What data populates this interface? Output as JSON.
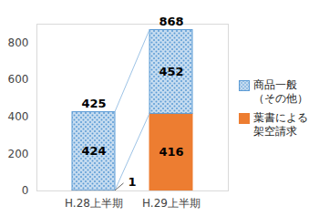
{
  "chart_data": {
    "type": "bar",
    "categories": [
      "H.28上半期",
      "H.29上半期"
    ],
    "series": [
      {
        "name": "商品一般（その他）",
        "color": "#5b9bd5",
        "values": [
          424,
          452
        ]
      },
      {
        "name": "葉書による架空請求",
        "color": "#ed7d31",
        "values": [
          1,
          416
        ]
      }
    ],
    "totals": [
      425,
      868
    ],
    "stacked": true,
    "data_labels": true,
    "grid": false,
    "legend": "right",
    "ylim": [
      0,
      900
    ],
    "yticks": [
      0,
      200,
      400,
      600,
      800
    ]
  }
}
